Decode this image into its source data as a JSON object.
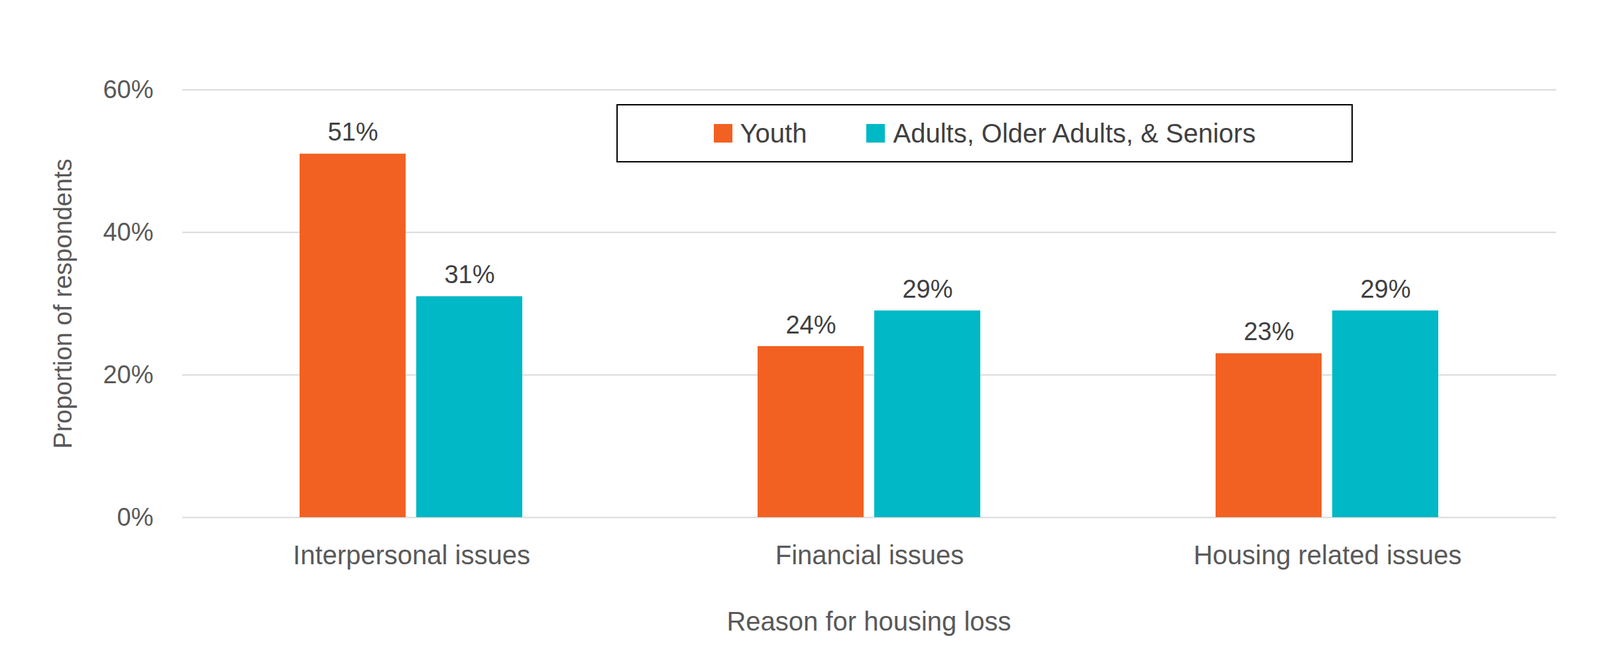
{
  "chart_data": {
    "type": "bar",
    "x_label": "Reason for housing loss",
    "y_label": "Proportion of respondents",
    "categories": [
      "Interpersonal issues",
      "Financial issues",
      "Housing related issues"
    ],
    "series": [
      {
        "name": "Youth",
        "color": "#F26122",
        "values": [
          51,
          24,
          23
        ],
        "value_labels": [
          "51%",
          "24%",
          "23%"
        ]
      },
      {
        "name": "Adults, Older Adults, & Seniors",
        "color": "#00B8C6",
        "values": [
          31,
          29,
          29
        ],
        "value_labels": [
          "31%",
          "29%",
          "29%"
        ]
      }
    ],
    "ylim": [
      0,
      60
    ],
    "yticks": [
      {
        "value": 0,
        "label": "0%"
      },
      {
        "value": 20,
        "label": "20%"
      },
      {
        "value": 40,
        "label": "40%"
      },
      {
        "value": 60,
        "label": "60%"
      }
    ],
    "grid": true,
    "legend": "top",
    "data_labels": true
  }
}
